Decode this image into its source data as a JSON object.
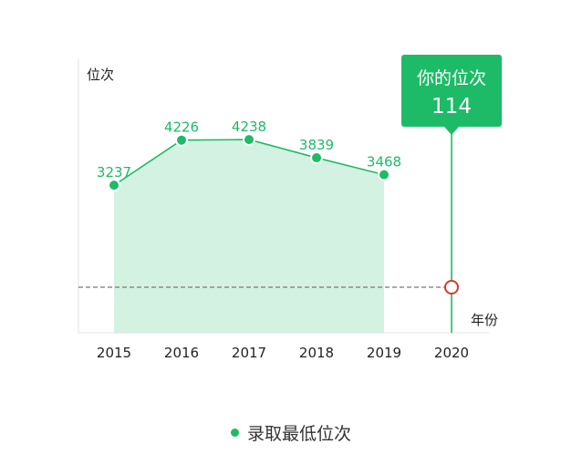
{
  "chart_data": {
    "type": "line",
    "title": "",
    "ylabel": "位次",
    "xlabel": "年份",
    "categories": [
      "2015",
      "2016",
      "2017",
      "2018",
      "2019",
      "2020"
    ],
    "series": [
      {
        "name": "录取最低位次",
        "x": [
          "2015",
          "2016",
          "2017",
          "2018",
          "2019"
        ],
        "values": [
          3237,
          4226,
          4238,
          3839,
          3468
        ],
        "area_fill": true
      }
    ],
    "y_axis_visible_ticks": false,
    "ylim": [
      0,
      6000
    ],
    "reference": {
      "label": "你的位次",
      "value": 114,
      "value_text": "114",
      "x": "2020",
      "marker_y_value": 1000,
      "style": "dashed horizontal line with callout"
    },
    "legend": {
      "position": "bottom-center",
      "entries": [
        "录取最低位次"
      ]
    },
    "grid": false,
    "colors": {
      "series": "#1dbb68",
      "area": "#d4f2e1",
      "reference_marker": "#d23a33",
      "dashed_line": "#777777",
      "axis": "#e0e0e0"
    }
  }
}
